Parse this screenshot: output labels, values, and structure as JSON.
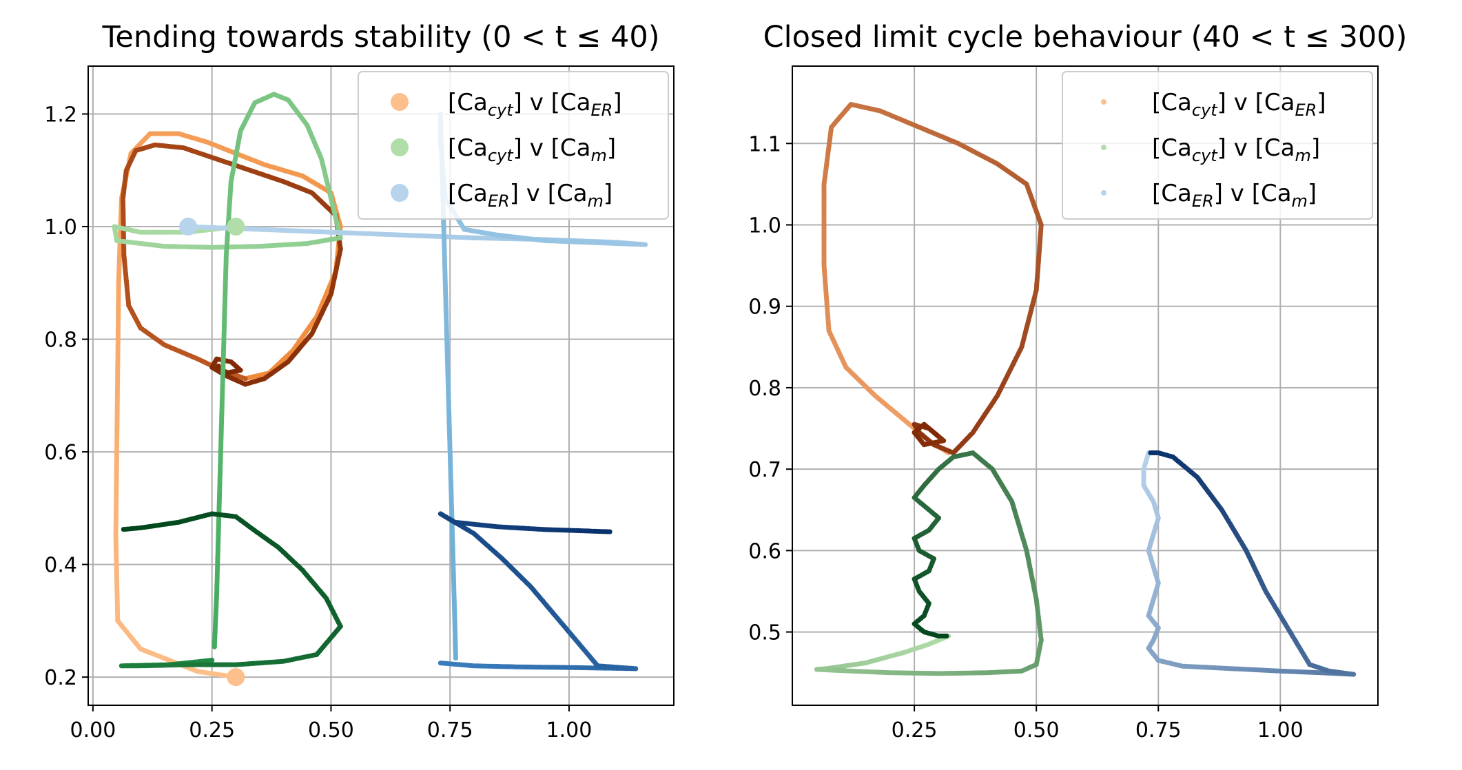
{
  "chart_data": [
    {
      "type": "scatter",
      "title": "Tending towards stability (0 < t ≤ 40)",
      "xlim": [
        -0.01,
        1.22
      ],
      "ylim": [
        0.15,
        1.285
      ],
      "xticks": [
        "0.00",
        "0.25",
        "0.50",
        "0.75",
        "1.00"
      ],
      "yticks": [
        "0.2",
        "0.4",
        "0.6",
        "0.8",
        "1.0",
        "1.2"
      ],
      "grid": true,
      "legend_position": "top-right",
      "legend": [
        {
          "main": "[Ca",
          "sub": "cyt",
          "mid": "] v [Ca",
          "sub2": "ER",
          "end": "]",
          "color": "#fdc08c"
        },
        {
          "main": "[Ca",
          "sub": "cyt",
          "mid": "] v [Ca",
          "sub2": "m",
          "end": "]",
          "color": "#b1dda8"
        },
        {
          "main": "[Ca",
          "sub": "ER",
          "mid": "] v [Ca",
          "sub2": "m",
          "end": "]",
          "color": "#b8d3ec"
        }
      ],
      "series": [
        {
          "color_start": "#fdc08c",
          "color_end": "#f08a3a",
          "points": [
            [
              0.3,
              0.2
            ],
            [
              0.22,
              0.21
            ],
            [
              0.1,
              0.25
            ],
            [
              0.052,
              0.3
            ],
            [
              0.048,
              0.45
            ],
            [
              0.05,
              0.6
            ],
            [
              0.052,
              0.75
            ],
            [
              0.054,
              0.9
            ],
            [
              0.06,
              1.05
            ],
            [
              0.08,
              1.13
            ],
            [
              0.12,
              1.165
            ],
            [
              0.18,
              1.165
            ],
            [
              0.24,
              1.15
            ],
            [
              0.3,
              1.13
            ],
            [
              0.36,
              1.11
            ],
            [
              0.44,
              1.09
            ],
            [
              0.5,
              1.06
            ],
            [
              0.52,
              1.0
            ],
            [
              0.51,
              0.92
            ],
            [
              0.47,
              0.84
            ],
            [
              0.42,
              0.78
            ],
            [
              0.37,
              0.74
            ],
            [
              0.32,
              0.73
            ]
          ]
        },
        {
          "color_start": "#bf5a22",
          "color_end": "#7f2704",
          "points": [
            [
              0.32,
              0.73
            ],
            [
              0.27,
              0.745
            ],
            [
              0.22,
              0.765
            ],
            [
              0.15,
              0.79
            ],
            [
              0.1,
              0.82
            ],
            [
              0.075,
              0.86
            ],
            [
              0.065,
              0.95
            ],
            [
              0.063,
              1.05
            ],
            [
              0.07,
              1.1
            ],
            [
              0.09,
              1.135
            ],
            [
              0.13,
              1.145
            ],
            [
              0.19,
              1.14
            ],
            [
              0.26,
              1.12
            ],
            [
              0.33,
              1.1
            ],
            [
              0.4,
              1.08
            ],
            [
              0.46,
              1.06
            ],
            [
              0.51,
              1.02
            ],
            [
              0.52,
              0.96
            ],
            [
              0.5,
              0.88
            ],
            [
              0.46,
              0.81
            ],
            [
              0.41,
              0.76
            ],
            [
              0.36,
              0.73
            ],
            [
              0.32,
              0.72
            ],
            [
              0.28,
              0.735
            ],
            [
              0.25,
              0.75
            ],
            [
              0.26,
              0.765
            ],
            [
              0.29,
              0.76
            ],
            [
              0.31,
              0.745
            ],
            [
              0.28,
              0.74
            ],
            [
              0.26,
              0.755
            ]
          ]
        },
        {
          "color_start": "#b1dda8",
          "color_end": "#41ab5d",
          "points": [
            [
              0.3,
              1.0
            ],
            [
              0.2,
              0.99
            ],
            [
              0.1,
              0.99
            ],
            [
              0.045,
              1.0
            ],
            [
              0.05,
              0.975
            ],
            [
              0.15,
              0.965
            ],
            [
              0.25,
              0.963
            ],
            [
              0.35,
              0.965
            ],
            [
              0.45,
              0.97
            ],
            [
              0.52,
              0.98
            ],
            [
              0.5,
              1.05
            ],
            [
              0.48,
              1.12
            ],
            [
              0.45,
              1.18
            ],
            [
              0.41,
              1.225
            ],
            [
              0.38,
              1.235
            ],
            [
              0.34,
              1.22
            ],
            [
              0.31,
              1.17
            ],
            [
              0.29,
              1.08
            ],
            [
              0.28,
              0.95
            ],
            [
              0.275,
              0.8
            ],
            [
              0.27,
              0.65
            ],
            [
              0.265,
              0.5
            ],
            [
              0.26,
              0.35
            ],
            [
              0.255,
              0.25
            ]
          ]
        },
        {
          "color_start": "#238b45",
          "color_end": "#00441b",
          "points": [
            [
              0.25,
              0.23
            ],
            [
              0.16,
              0.222
            ],
            [
              0.06,
              0.22
            ],
            [
              0.1,
              0.22
            ],
            [
              0.2,
              0.222
            ],
            [
              0.3,
              0.222
            ],
            [
              0.4,
              0.228
            ],
            [
              0.47,
              0.24
            ],
            [
              0.52,
              0.29
            ],
            [
              0.49,
              0.34
            ],
            [
              0.44,
              0.39
            ],
            [
              0.39,
              0.43
            ],
            [
              0.34,
              0.46
            ],
            [
              0.3,
              0.485
            ],
            [
              0.25,
              0.49
            ],
            [
              0.18,
              0.475
            ],
            [
              0.1,
              0.465
            ],
            [
              0.06,
              0.462
            ]
          ]
        },
        {
          "color_start": "#b8d3ec",
          "color_end": "#6baed6",
          "points": [
            [
              0.2,
              1.0
            ],
            [
              0.35,
              0.995
            ],
            [
              0.5,
              0.99
            ],
            [
              0.65,
              0.985
            ],
            [
              0.8,
              0.98
            ],
            [
              0.95,
              0.977
            ],
            [
              1.1,
              0.972
            ],
            [
              1.16,
              0.968
            ],
            [
              1.1,
              0.97
            ],
            [
              0.95,
              0.975
            ],
            [
              0.85,
              0.985
            ],
            [
              0.78,
              0.995
            ],
            [
              0.74,
              1.05
            ],
            [
              0.73,
              1.15
            ],
            [
              0.73,
              1.2
            ],
            [
              0.735,
              1.05
            ],
            [
              0.74,
              0.9
            ],
            [
              0.745,
              0.75
            ],
            [
              0.75,
              0.6
            ],
            [
              0.755,
              0.45
            ],
            [
              0.76,
              0.3
            ],
            [
              0.762,
              0.23
            ]
          ]
        },
        {
          "color_start": "#3a7ebe",
          "color_end": "#08306b",
          "points": [
            [
              0.73,
              0.225
            ],
            [
              0.8,
              0.22
            ],
            [
              0.9,
              0.218
            ],
            [
              1.0,
              0.217
            ],
            [
              1.14,
              0.215
            ],
            [
              1.06,
              0.22
            ],
            [
              1.02,
              0.26
            ],
            [
              0.97,
              0.31
            ],
            [
              0.92,
              0.36
            ],
            [
              0.86,
              0.41
            ],
            [
              0.8,
              0.455
            ],
            [
              0.75,
              0.48
            ],
            [
              0.73,
              0.49
            ],
            [
              0.76,
              0.475
            ],
            [
              0.85,
              0.467
            ],
            [
              0.95,
              0.462
            ],
            [
              1.09,
              0.458
            ]
          ]
        }
      ],
      "markers": [
        {
          "x": 0.3,
          "y": 0.2,
          "color": "#fdc08c"
        },
        {
          "x": 0.3,
          "y": 1.0,
          "color": "#b1dda8"
        },
        {
          "x": 0.2,
          "y": 1.0,
          "color": "#b8d3ec"
        }
      ]
    },
    {
      "type": "scatter",
      "title": "Closed limit cycle behaviour (40 < t ≤ 300)",
      "xlim": [
        0.0,
        1.2
      ],
      "ylim": [
        0.41,
        1.195
      ],
      "xticks": [
        "0.25",
        "0.50",
        "0.75",
        "1.00"
      ],
      "yticks": [
        "0.5",
        "0.6",
        "0.7",
        "0.8",
        "0.9",
        "1.0",
        "1.1"
      ],
      "grid": true,
      "legend_position": "top-right",
      "legend": [
        {
          "main": "[Ca",
          "sub": "cyt",
          "mid": "] v [Ca",
          "sub2": "ER",
          "end": "]",
          "color": "#fdc08c"
        },
        {
          "main": "[Ca",
          "sub": "cyt",
          "mid": "] v [Ca",
          "sub2": "m",
          "end": "]",
          "color": "#b1dda8"
        },
        {
          "main": "[Ca",
          "sub": "ER",
          "mid": "] v [Ca",
          "sub2": "m",
          "end": "]",
          "color": "#b8d3ec"
        }
      ],
      "series": [
        {
          "color_start": "#f6a56a",
          "color_end": "#7f2704",
          "points": [
            [
              0.32,
              0.72
            ],
            [
              0.28,
              0.735
            ],
            [
              0.23,
              0.76
            ],
            [
              0.17,
              0.79
            ],
            [
              0.11,
              0.825
            ],
            [
              0.075,
              0.87
            ],
            [
              0.065,
              0.95
            ],
            [
              0.065,
              1.05
            ],
            [
              0.08,
              1.12
            ],
            [
              0.12,
              1.148
            ],
            [
              0.18,
              1.14
            ],
            [
              0.26,
              1.12
            ],
            [
              0.34,
              1.1
            ],
            [
              0.42,
              1.075
            ],
            [
              0.48,
              1.05
            ],
            [
              0.51,
              1.0
            ],
            [
              0.5,
              0.92
            ],
            [
              0.47,
              0.85
            ],
            [
              0.42,
              0.79
            ],
            [
              0.37,
              0.745
            ],
            [
              0.33,
              0.72
            ],
            [
              0.29,
              0.73
            ],
            [
              0.26,
              0.745
            ],
            [
              0.25,
              0.755
            ],
            [
              0.28,
              0.75
            ],
            [
              0.31,
              0.735
            ],
            [
              0.27,
              0.73
            ],
            [
              0.25,
              0.745
            ],
            [
              0.27,
              0.755
            ],
            [
              0.3,
              0.74
            ]
          ]
        },
        {
          "color_start": "#b1dda8",
          "color_end": "#00441b",
          "points": [
            [
              0.32,
              0.495
            ],
            [
              0.28,
              0.485
            ],
            [
              0.23,
              0.475
            ],
            [
              0.15,
              0.462
            ],
            [
              0.07,
              0.455
            ],
            [
              0.05,
              0.454
            ],
            [
              0.12,
              0.452
            ],
            [
              0.2,
              0.45
            ],
            [
              0.3,
              0.449
            ],
            [
              0.4,
              0.45
            ],
            [
              0.47,
              0.452
            ],
            [
              0.5,
              0.46
            ],
            [
              0.51,
              0.49
            ],
            [
              0.5,
              0.54
            ],
            [
              0.48,
              0.6
            ],
            [
              0.45,
              0.66
            ],
            [
              0.41,
              0.7
            ],
            [
              0.37,
              0.72
            ],
            [
              0.33,
              0.715
            ],
            [
              0.3,
              0.7
            ],
            [
              0.27,
              0.68
            ],
            [
              0.25,
              0.665
            ],
            [
              0.27,
              0.655
            ],
            [
              0.3,
              0.64
            ],
            [
              0.28,
              0.625
            ],
            [
              0.25,
              0.615
            ],
            [
              0.26,
              0.6
            ],
            [
              0.29,
              0.59
            ],
            [
              0.28,
              0.575
            ],
            [
              0.25,
              0.565
            ],
            [
              0.26,
              0.55
            ],
            [
              0.28,
              0.535
            ],
            [
              0.27,
              0.52
            ],
            [
              0.25,
              0.51
            ],
            [
              0.27,
              0.5
            ],
            [
              0.3,
              0.495
            ],
            [
              0.32,
              0.495
            ]
          ]
        },
        {
          "color_start": "#b8d3ec",
          "color_end": "#08306b",
          "points": [
            [
              0.73,
              0.72
            ],
            [
              0.72,
              0.7
            ],
            [
              0.72,
              0.68
            ],
            [
              0.74,
              0.66
            ],
            [
              0.75,
              0.64
            ],
            [
              0.74,
              0.62
            ],
            [
              0.73,
              0.6
            ],
            [
              0.74,
              0.58
            ],
            [
              0.75,
              0.56
            ],
            [
              0.74,
              0.54
            ],
            [
              0.73,
              0.52
            ],
            [
              0.75,
              0.505
            ],
            [
              0.74,
              0.49
            ],
            [
              0.73,
              0.48
            ],
            [
              0.75,
              0.465
            ],
            [
              0.8,
              0.458
            ],
            [
              0.9,
              0.455
            ],
            [
              1.0,
              0.452
            ],
            [
              1.08,
              0.45
            ],
            [
              1.15,
              0.448
            ],
            [
              1.1,
              0.452
            ],
            [
              1.06,
              0.46
            ],
            [
              1.02,
              0.5
            ],
            [
              0.97,
              0.55
            ],
            [
              0.93,
              0.6
            ],
            [
              0.88,
              0.65
            ],
            [
              0.83,
              0.69
            ],
            [
              0.78,
              0.715
            ],
            [
              0.75,
              0.72
            ],
            [
              0.73,
              0.72
            ]
          ]
        }
      ],
      "markers": []
    }
  ]
}
